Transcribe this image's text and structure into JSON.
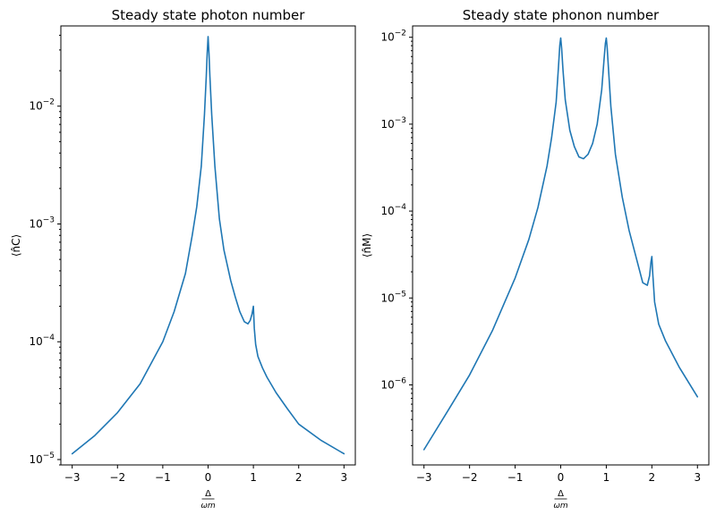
{
  "chart_data": [
    {
      "type": "line",
      "title": "Steady state photon number",
      "xlabel_num": "Δ",
      "xlabel_den": "ωm",
      "ylabel": "⟨n̂C⟩",
      "xlim": [
        -3.25,
        3.25
      ],
      "ylim": [
        9e-06,
        0.048
      ],
      "yscale": "log",
      "grid": false,
      "xticks": [
        -3,
        -2,
        -1,
        0,
        1,
        2,
        3
      ],
      "xtick_labels": [
        "−3",
        "−2",
        "−1",
        "0",
        "1",
        "2",
        "3"
      ],
      "yticks": [
        1e-05,
        0.0001,
        0.001,
        0.01
      ],
      "ytick_labels": [
        "10−5",
        "10−4",
        "10−3",
        "10−2"
      ],
      "color": "#1f77b4",
      "x": [
        -3.0,
        -2.5,
        -2.0,
        -1.5,
        -1.0,
        -0.75,
        -0.5,
        -0.35,
        -0.25,
        -0.15,
        -0.08,
        -0.04,
        -0.02,
        0.0,
        0.02,
        0.04,
        0.08,
        0.15,
        0.25,
        0.35,
        0.5,
        0.6,
        0.7,
        0.8,
        0.88,
        0.93,
        0.97,
        1.0,
        1.02,
        1.05,
        1.1,
        1.2,
        1.3,
        1.5,
        1.75,
        2.0,
        2.5,
        3.0
      ],
      "y": [
        1.12e-05,
        1.6e-05,
        2.5e-05,
        4.4e-05,
        0.0001,
        0.00018,
        0.00038,
        0.0008,
        0.0014,
        0.0031,
        0.0085,
        0.018,
        0.028,
        0.039,
        0.028,
        0.018,
        0.0085,
        0.0031,
        0.0011,
        0.0006,
        0.00033,
        0.00024,
        0.00018,
        0.000148,
        0.000142,
        0.000152,
        0.000172,
        0.0002,
        0.00013,
        9.5e-05,
        7.5e-05,
        6e-05,
        5e-05,
        3.7e-05,
        2.7e-05,
        2e-05,
        1.45e-05,
        1.12e-05
      ]
    },
    {
      "type": "line",
      "title": "Steady state phonon number",
      "xlabel_num": "Δ",
      "xlabel_den": "ωm",
      "ylabel": "⟨n̂M⟩",
      "xlim": [
        -3.25,
        3.25
      ],
      "ylim": [
        1.2e-07,
        0.0135
      ],
      "yscale": "log",
      "grid": false,
      "xticks": [
        -3,
        -2,
        -1,
        0,
        1,
        2,
        3
      ],
      "xtick_labels": [
        "−3",
        "−2",
        "−1",
        "0",
        "1",
        "2",
        "3"
      ],
      "yticks": [
        1e-06,
        1e-05,
        0.0001,
        0.001,
        0.01
      ],
      "ytick_labels": [
        "10−6",
        "10−5",
        "10−4",
        "10−3",
        "10−2"
      ],
      "color": "#1f77b4",
      "x": [
        -3.0,
        -2.5,
        -2.0,
        -1.5,
        -1.0,
        -0.7,
        -0.5,
        -0.3,
        -0.2,
        -0.1,
        -0.05,
        -0.02,
        0.0,
        0.02,
        0.05,
        0.1,
        0.2,
        0.3,
        0.4,
        0.5,
        0.6,
        0.7,
        0.8,
        0.9,
        0.95,
        0.98,
        1.0,
        1.02,
        1.05,
        1.1,
        1.2,
        1.35,
        1.5,
        1.65,
        1.8,
        1.9,
        1.95,
        1.98,
        2.0,
        2.02,
        2.06,
        2.15,
        2.3,
        2.6,
        3.0
      ],
      "y": [
        1.8e-07,
        4.8e-07,
        1.3e-06,
        4.2e-06,
        1.7e-05,
        4.7e-05,
        0.00011,
        0.00033,
        0.0007,
        0.0018,
        0.0045,
        0.0081,
        0.0098,
        0.0075,
        0.0042,
        0.0019,
        0.00085,
        0.00055,
        0.00042,
        0.0004,
        0.00045,
        0.0006,
        0.001,
        0.0025,
        0.0055,
        0.0085,
        0.0098,
        0.0075,
        0.0042,
        0.0016,
        0.00045,
        0.000145,
        6e-05,
        3e-05,
        1.5e-05,
        1.4e-05,
        1.8e-05,
        2.6e-05,
        3e-05,
        1.9e-05,
        9e-06,
        5e-06,
        3.2e-06,
        1.6e-06,
        7.3e-07
      ]
    }
  ]
}
